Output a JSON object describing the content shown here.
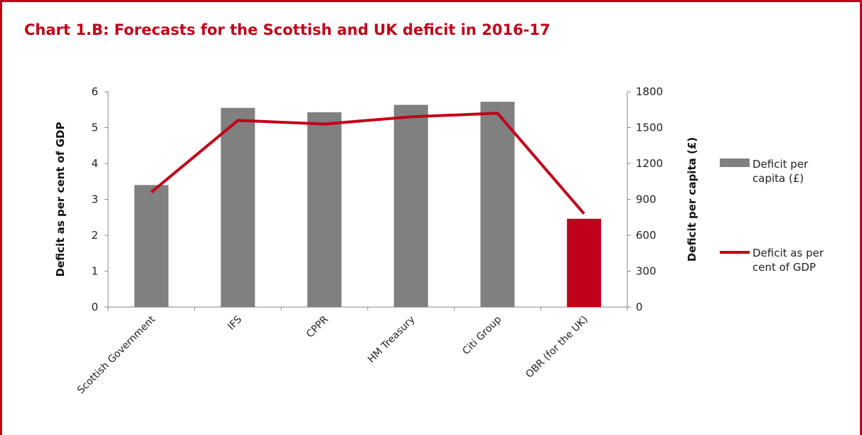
{
  "title": "Chart 1.B: Forecasts for the Scottish and UK deficit in 2016-17",
  "colors": {
    "accent": "#c0001a",
    "bar": "#808080",
    "highlight_bar": "#c0001a",
    "line": "#c0001a"
  },
  "chart_data": {
    "type": "bar",
    "categories": [
      "Scottish Government",
      "IFS",
      "CPPR",
      "HM Treasury",
      "Citi Group",
      "OBR (for the UK)"
    ],
    "series": [
      {
        "name": "Deficit per capita (£)",
        "type": "bar",
        "axis": "right",
        "values": [
          1020,
          1665,
          1628,
          1690,
          1716,
          738
        ]
      },
      {
        "name": "Deficit as per cent of GDP",
        "type": "line",
        "axis": "left",
        "values": [
          3.2,
          5.2,
          5.1,
          5.3,
          5.4,
          2.6
        ]
      }
    ],
    "ylabel": "Deficit as per cent of GDP",
    "ylim": [
      0,
      6
    ],
    "yticks": [
      "0",
      "1",
      "2",
      "3",
      "4",
      "5",
      "6"
    ],
    "y2label": "Deficit per capita (£)",
    "y2lim": [
      0,
      1800
    ],
    "y2ticks": [
      "0",
      "300",
      "600",
      "900",
      "1200",
      "1500",
      "1800"
    ],
    "legend_position": "right",
    "legend": [
      "Deficit per capita (£)",
      "Deficit as per cent of GDP"
    ],
    "grid": false
  }
}
